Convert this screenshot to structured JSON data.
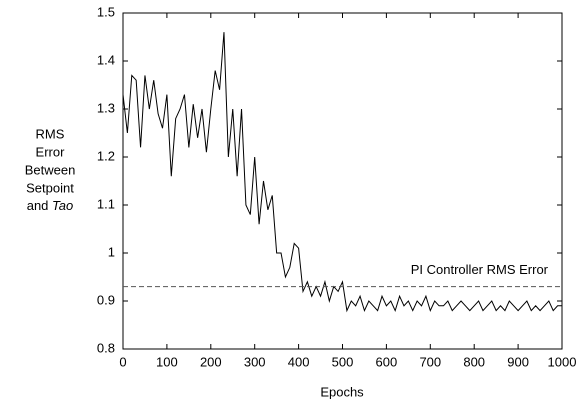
{
  "chart_data": {
    "type": "line",
    "y_label": [
      "RMS",
      "Error",
      "Between",
      "Setpoint",
      "and",
      "Tao"
    ],
    "x_label": "Epochs",
    "xlim": [
      0,
      1000
    ],
    "xticks": [
      0,
      100,
      200,
      300,
      400,
      500,
      600,
      700,
      800,
      900,
      1000
    ],
    "ylim": [
      0.8,
      1.5
    ],
    "yticks": [
      0.8,
      0.9,
      1,
      1.1,
      1.2,
      1.3,
      1.4,
      1.5
    ],
    "series": [
      {
        "name": "RMS Error",
        "color": "#000000",
        "dash": "none",
        "x": [
          0,
          10,
          20,
          30,
          40,
          50,
          60,
          70,
          80,
          90,
          100,
          110,
          120,
          130,
          140,
          150,
          160,
          170,
          180,
          190,
          200,
          210,
          220,
          230,
          240,
          250,
          260,
          270,
          280,
          290,
          300,
          310,
          320,
          330,
          340,
          350,
          360,
          370,
          380,
          390,
          400,
          410,
          420,
          430,
          440,
          450,
          460,
          470,
          480,
          490,
          500,
          510,
          520,
          530,
          540,
          550,
          560,
          570,
          580,
          590,
          600,
          610,
          620,
          630,
          640,
          650,
          660,
          670,
          680,
          690,
          700,
          710,
          720,
          730,
          740,
          750,
          760,
          770,
          780,
          790,
          800,
          810,
          820,
          830,
          840,
          850,
          860,
          870,
          880,
          890,
          900,
          910,
          920,
          930,
          940,
          950,
          960,
          970,
          980,
          990,
          1000
        ],
        "values": [
          1.33,
          1.25,
          1.37,
          1.36,
          1.22,
          1.37,
          1.3,
          1.36,
          1.29,
          1.26,
          1.33,
          1.16,
          1.28,
          1.3,
          1.33,
          1.22,
          1.31,
          1.24,
          1.3,
          1.21,
          1.3,
          1.38,
          1.34,
          1.46,
          1.2,
          1.3,
          1.16,
          1.3,
          1.1,
          1.08,
          1.2,
          1.06,
          1.15,
          1.09,
          1.12,
          1.0,
          1.0,
          0.95,
          0.97,
          1.02,
          1.01,
          0.92,
          0.94,
          0.91,
          0.93,
          0.91,
          0.94,
          0.9,
          0.93,
          0.92,
          0.94,
          0.88,
          0.9,
          0.89,
          0.91,
          0.88,
          0.9,
          0.89,
          0.88,
          0.91,
          0.89,
          0.9,
          0.88,
          0.91,
          0.89,
          0.9,
          0.88,
          0.9,
          0.89,
          0.91,
          0.88,
          0.9,
          0.89,
          0.89,
          0.9,
          0.88,
          0.89,
          0.9,
          0.89,
          0.88,
          0.89,
          0.9,
          0.88,
          0.89,
          0.9,
          0.88,
          0.89,
          0.88,
          0.9,
          0.89,
          0.88,
          0.89,
          0.9,
          0.88,
          0.89,
          0.88,
          0.89,
          0.9,
          0.88,
          0.89,
          0.89
        ]
      },
      {
        "name": "PI Controller RMS Error",
        "color": "#555555",
        "dash": "5,3",
        "x": [
          0,
          1000
        ],
        "values": [
          0.93,
          0.93
        ]
      }
    ]
  }
}
